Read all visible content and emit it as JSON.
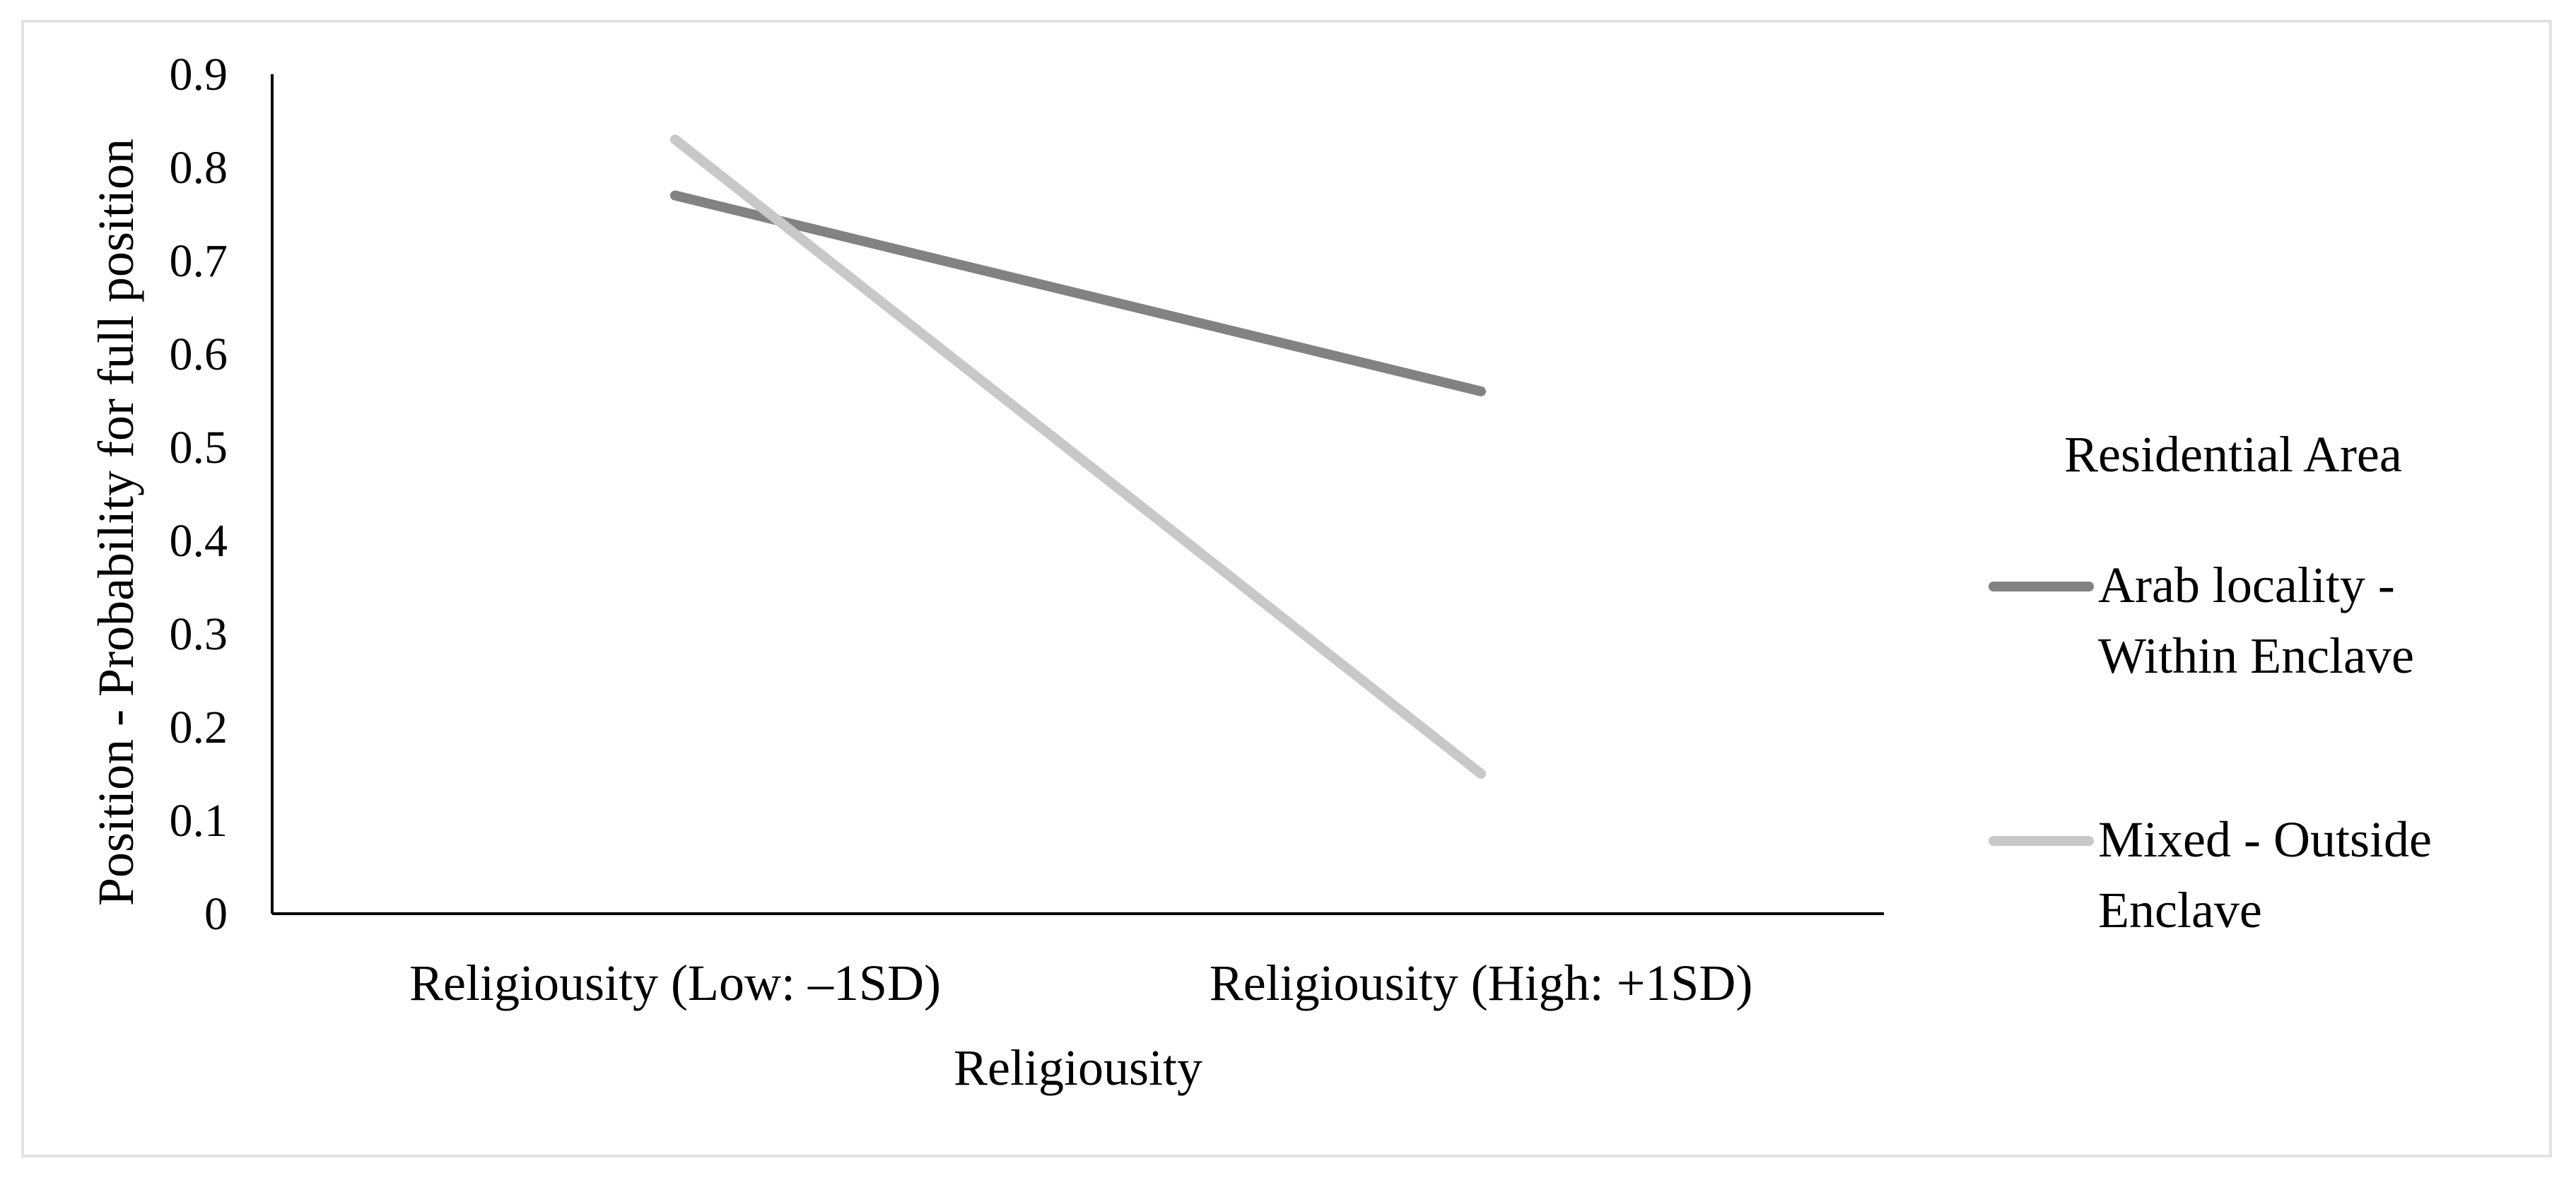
{
  "chart_data": {
    "type": "line",
    "title": "",
    "xlabel": "Religiousity",
    "ylabel": "Position - Probability for full position",
    "categories": [
      "Religiousity (Low: –1SD)",
      "Religiousity (High: +1SD)"
    ],
    "ylim": [
      0,
      0.9
    ],
    "yticks": [
      "0",
      "0.1",
      "0.2",
      "0.3",
      "0.4",
      "0.5",
      "0.6",
      "0.7",
      "0.8",
      "0.9"
    ],
    "grid": false,
    "legend": {
      "title": "Residential Area",
      "placement": "right"
    },
    "series": [
      {
        "name": "Arab locality - Within Enclave",
        "name_lines": [
          "Arab locality -",
          "Within Enclave"
        ],
        "values": [
          0.77,
          0.56
        ],
        "color": "#828282"
      },
      {
        "name": "Mixed - Outside Enclave",
        "name_lines": [
          "Mixed - Outside",
          "Enclave"
        ],
        "values": [
          0.83,
          0.15
        ],
        "color": "#c8c8c8"
      }
    ]
  }
}
